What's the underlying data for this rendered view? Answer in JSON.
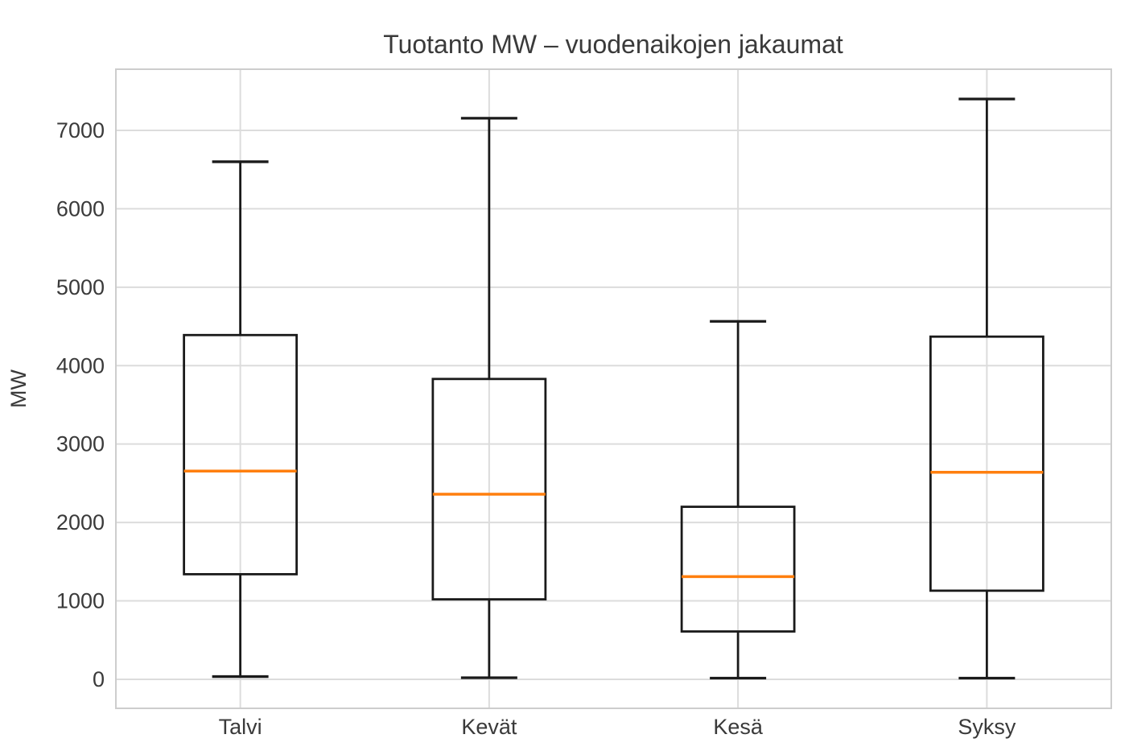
{
  "figure": {
    "title": "Tuotanto MW – vuodenaikojen jakaumat",
    "ylabel": "MW"
  },
  "chart_data": {
    "type": "boxplot",
    "title": "Tuotanto MW – vuodenaikojen jakaumat",
    "xlabel": "",
    "ylabel": "MW",
    "categories": [
      "Talvi",
      "Kevät",
      "Kesä",
      "Syksy"
    ],
    "series": [
      {
        "name": "Talvi",
        "whislo": 35,
        "q1": 1340,
        "med": 2655,
        "q3": 4390,
        "whishi": 6600
      },
      {
        "name": "Kevät",
        "whislo": 20,
        "q1": 1020,
        "med": 2360,
        "q3": 3830,
        "whishi": 7155
      },
      {
        "name": "Kesä",
        "whislo": 15,
        "q1": 610,
        "med": 1310,
        "q3": 2200,
        "whishi": 4565
      },
      {
        "name": "Syksy",
        "whislo": 15,
        "q1": 1130,
        "med": 2640,
        "q3": 4370,
        "whishi": 7400
      }
    ],
    "yticks": [
      0,
      1000,
      2000,
      3000,
      4000,
      5000,
      6000,
      7000
    ],
    "ylim": [
      -370,
      7780
    ],
    "grid": true,
    "legend": "none",
    "colors": {
      "box_line": "#1a1a1a",
      "median": "#ff7f0e",
      "grid": "#dcdcdc",
      "spine": "#cdcdcd",
      "text": "#3a3a3a",
      "background": "#ffffff"
    }
  }
}
